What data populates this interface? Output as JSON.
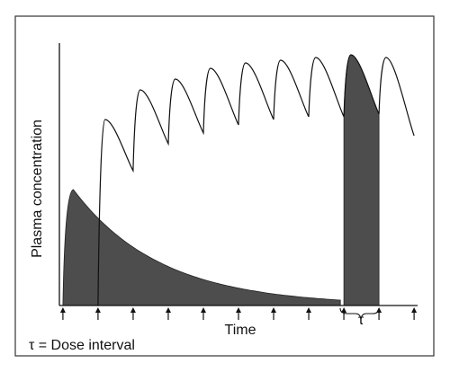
{
  "chart_data": {
    "type": "line",
    "title": "",
    "xlabel": "Time",
    "ylabel": "Plasma concentration",
    "legend_note": "τ = Dose interval",
    "interval_label": "τ",
    "grid": false,
    "dose_times": [
      0,
      1,
      2,
      3,
      4,
      5,
      6,
      7,
      8,
      9,
      10
    ],
    "xlim": [
      -0.1,
      10.1
    ],
    "ylim": [
      0,
      100
    ],
    "series": [
      {
        "kind": "single-dose",
        "shaded": true,
        "peak_time": 0.3,
        "peak_value": 43,
        "end_time": 7.9,
        "end_value": 2
      },
      {
        "kind": "multiple-dose",
        "shaded": false,
        "start_time": 1,
        "cycles": [
          {
            "start": 1,
            "peak": 69,
            "trough": 50
          },
          {
            "start": 2,
            "peak": 80,
            "trough": 60
          },
          {
            "start": 3,
            "peak": 84,
            "trough": 64
          },
          {
            "start": 4,
            "peak": 88,
            "trough": 67
          },
          {
            "start": 5,
            "peak": 90,
            "trough": 69
          },
          {
            "start": 6,
            "peak": 91,
            "trough": 70
          },
          {
            "start": 7,
            "peak": 92,
            "trough": 70
          },
          {
            "start": 8,
            "peak": 93,
            "trough": 71
          },
          {
            "start": 9,
            "peak": 92,
            "trough": 63
          }
        ],
        "shaded_interval": [
          8,
          9
        ]
      }
    ]
  }
}
